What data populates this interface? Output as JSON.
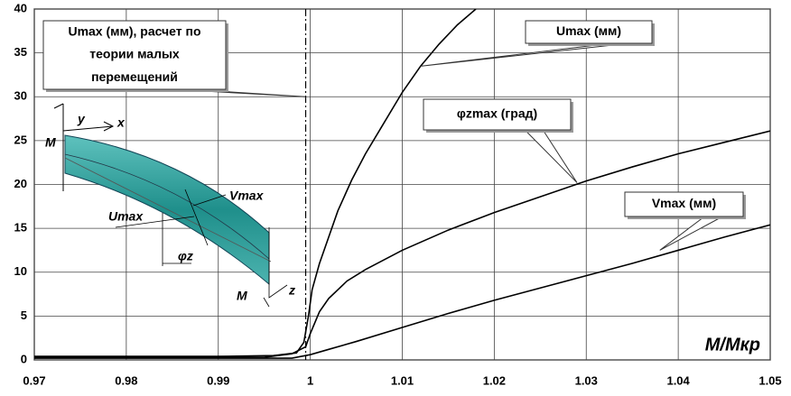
{
  "chart_data": {
    "type": "line",
    "x_label": "M/Mкр",
    "xlim": [
      0.97,
      1.05
    ],
    "ylim": [
      0,
      40
    ],
    "xticks": [
      0.97,
      0.98,
      0.99,
      1,
      1.01,
      1.02,
      1.03,
      1.04,
      1.05
    ],
    "yticks": [
      0,
      5,
      10,
      15,
      20,
      25,
      30,
      35,
      40
    ],
    "grid": true,
    "asymptote_x": 0.9995,
    "series": [
      {
        "name": "Umax (мм)",
        "color": "#000000",
        "label_at": [
          1.0121,
          33.5
        ],
        "x": [
          0.97,
          0.99,
          0.996,
          0.9985,
          0.9993,
          0.9998,
          1.0002,
          1.001,
          1.002,
          1.003,
          1.0045,
          1.006,
          1.008,
          1.01,
          1.012,
          1.014,
          1.016,
          1.018
        ],
        "values": [
          0.4,
          0.4,
          0.5,
          0.8,
          2,
          5,
          8,
          11,
          14,
          17,
          20.5,
          23.5,
          27,
          30.5,
          33.5,
          36,
          38.2,
          40
        ]
      },
      {
        "name": "φzmax (град)",
        "color": "#000000",
        "label_at": [
          1.029,
          20.2
        ],
        "x": [
          0.97,
          0.995,
          0.998,
          0.9995,
          1,
          1.001,
          1.002,
          1.004,
          1.006,
          1.01,
          1.015,
          1.02,
          1.025,
          1.03,
          1.035,
          1.04,
          1.045,
          1.05
        ],
        "values": [
          0.3,
          0.3,
          0.7,
          1.5,
          3,
          5.5,
          7,
          9,
          10.3,
          12.5,
          14.8,
          16.8,
          18.6,
          20.4,
          22,
          23.5,
          24.8,
          26.1
        ]
      },
      {
        "name": "Vmax (мм)",
        "color": "#000000",
        "label_at": [
          1.038,
          12.5
        ],
        "x": [
          0.97,
          0.998,
          1,
          1.002,
          1.005,
          1.01,
          1.015,
          1.02,
          1.025,
          1.03,
          1.035,
          1.04,
          1.045,
          1.05
        ],
        "values": [
          0.2,
          0.2,
          0.6,
          1.2,
          2.1,
          3.7,
          5.3,
          6.8,
          8.2,
          9.6,
          11,
          12.5,
          14,
          15.4
        ]
      }
    ],
    "annotations": [
      {
        "text": [
          "Umax (мм), расчет по",
          "теории малых",
          "перемещений"
        ],
        "x": 0.9995,
        "y": 30
      }
    ],
    "inset_labels": {
      "y": "y",
      "x": "x",
      "m_left": "M",
      "vmax": "Vmax",
      "umax": "Umax",
      "phi": "φz",
      "z": "z",
      "m_right": "M"
    }
  }
}
